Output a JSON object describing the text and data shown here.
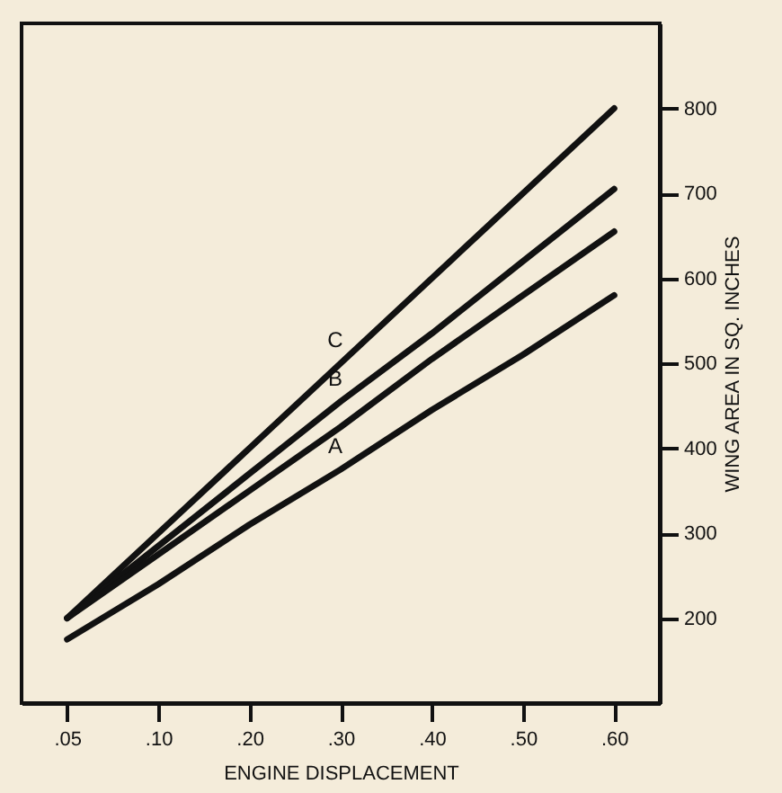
{
  "chart_data": {
    "type": "line",
    "xlabel": "ENGINE DISPLACEMENT",
    "ylabel": "WING AREA IN SQ. INCHES",
    "categories": [
      ".05",
      ".10",
      ".20",
      ".30",
      ".40",
      ".50",
      ".60"
    ],
    "series": [
      {
        "color": "#111111",
        "values": [
          200,
          300,
          400,
          500,
          600,
          700,
          800
        ]
      },
      {
        "color": "#111111",
        "values": [
          200,
          285,
          370,
          455,
          535,
          620,
          705
        ]
      },
      {
        "color": "#111111",
        "values": [
          200,
          275,
          350,
          425,
          505,
          580,
          655
        ]
      },
      {
        "color": "#111111",
        "values": [
          175,
          240,
          310,
          375,
          445,
          510,
          580
        ]
      }
    ],
    "annotations": [
      {
        "text": "C",
        "x": ".30",
        "y": 500
      },
      {
        "text": "B",
        "x": ".30",
        "y": 455
      },
      {
        "text": "A",
        "x": ".30",
        "y": 375
      }
    ],
    "ylim": [
      100,
      900
    ],
    "yticks": [
      200,
      300,
      400,
      500,
      600,
      700,
      800
    ],
    "grid": false,
    "legend": false,
    "marker": "none",
    "line_style": "solid"
  }
}
